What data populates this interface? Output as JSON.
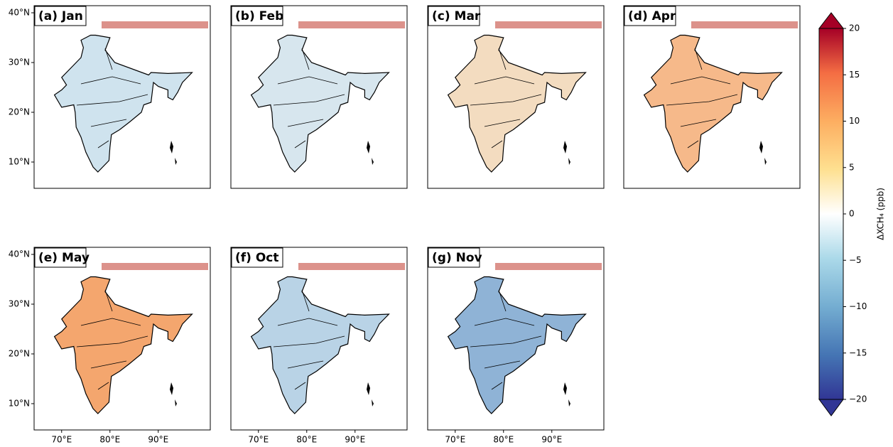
{
  "panels": [
    {
      "label": "(a) Jan"
    },
    {
      "label": "(b) Feb"
    },
    {
      "label": "(c) Mar"
    },
    {
      "label": "(d) Apr"
    },
    {
      "label": "(e) May"
    },
    {
      "label": "(f) Oct"
    },
    {
      "label": "(g) Nov"
    }
  ],
  "lat_ticks": [
    {
      "value": 40,
      "label": "40°N"
    },
    {
      "value": 30,
      "label": "30°N"
    },
    {
      "value": 20,
      "label": "20°N"
    },
    {
      "value": 10,
      "label": "10°N"
    }
  ],
  "lon_ticks": [
    {
      "value": 70,
      "label": "70°E"
    },
    {
      "value": 80,
      "label": "80°E"
    },
    {
      "value": 90,
      "label": "90°E"
    }
  ],
  "colorbar": {
    "label": "ΔXCH₄ (ppb)",
    "lim": [
      -20,
      20
    ],
    "ticks": [
      {
        "value": -20,
        "label": "−20"
      },
      {
        "value": -15,
        "label": "−15"
      },
      {
        "value": -10,
        "label": "−10"
      },
      {
        "value": -5,
        "label": "−5"
      },
      0,
      5,
      10,
      15,
      20
    ]
  }
}
